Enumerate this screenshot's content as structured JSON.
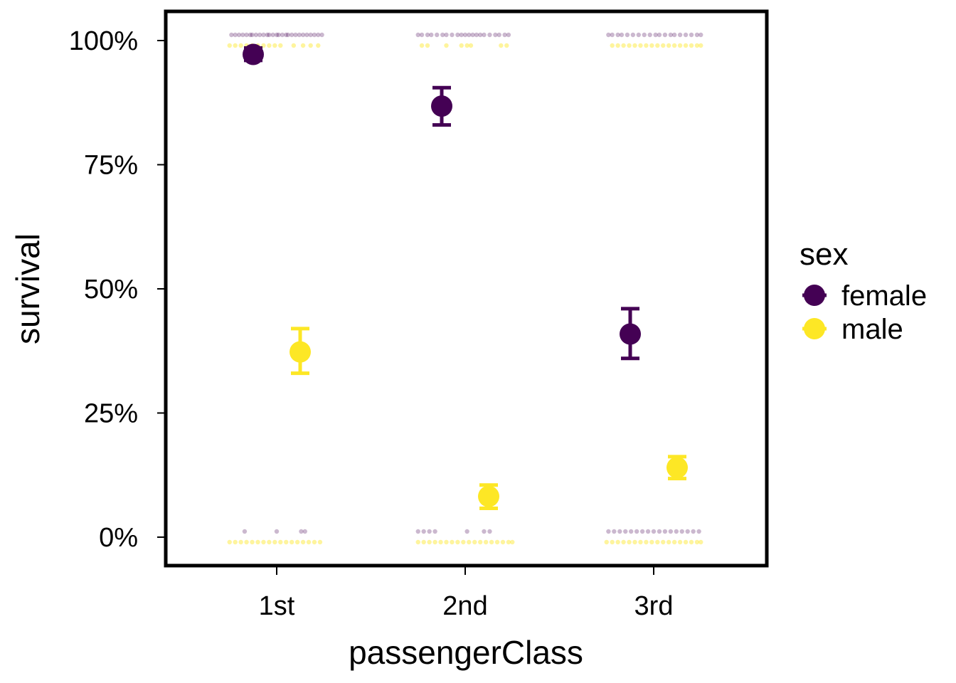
{
  "chart_data": {
    "type": "scatter",
    "title": "",
    "xlabel": "passengerClass",
    "ylabel": "survival",
    "categories": [
      "1st",
      "2nd",
      "3rd"
    ],
    "ylim": [
      -0.05,
      1.05
    ],
    "yticks": [
      0,
      0.25,
      0.5,
      0.75,
      1.0
    ],
    "ytick_labels": [
      "0%",
      "25%",
      "50%",
      "75%",
      "100%"
    ],
    "grid": false,
    "legend": {
      "title": "sex",
      "placement": "right"
    },
    "series": [
      {
        "name": "female",
        "color": "#440154",
        "survival": [
          0.972,
          0.868,
          0.409
        ],
        "ci_low": [
          0.96,
          0.83,
          0.36
        ],
        "ci_high": [
          0.985,
          0.905,
          0.46
        ]
      },
      {
        "name": "male",
        "color": "#FDE725",
        "survival": [
          0.373,
          0.082,
          0.14
        ],
        "ci_low": [
          0.33,
          0.058,
          0.118
        ],
        "ci_high": [
          0.42,
          0.105,
          0.162
        ]
      }
    ],
    "raw_observations": {
      "female": {
        "survived": [
          [
            -0.24,
            -0.22,
            -0.2,
            -0.18,
            -0.16,
            -0.14,
            -0.13,
            -0.11,
            -0.09,
            -0.07,
            -0.05,
            -0.04,
            -0.02,
            0.0,
            0.01,
            0.03,
            0.05,
            0.06,
            0.08,
            0.1,
            0.12,
            0.14,
            0.16,
            0.18,
            0.2,
            0.22,
            0.24
          ],
          [
            -0.25,
            -0.23,
            -0.2,
            -0.18,
            -0.15,
            -0.12,
            -0.1,
            -0.07,
            -0.04,
            -0.02,
            0.0,
            0.02,
            0.04,
            0.06,
            0.08,
            0.1,
            0.13,
            0.16,
            0.18,
            0.21,
            0.23
          ],
          [
            -0.24,
            -0.22,
            -0.19,
            -0.17,
            -0.14,
            -0.11,
            -0.08,
            -0.05,
            -0.02,
            0.01,
            0.03,
            0.06,
            0.09,
            0.11,
            0.14,
            0.17,
            0.2,
            0.23,
            0.25
          ]
        ],
        "died": [
          [
            -0.17,
            0.0,
            0.13,
            0.15
          ],
          [
            -0.25,
            -0.22,
            -0.19,
            -0.16,
            0.01,
            0.1,
            0.13
          ],
          [
            -0.24,
            -0.21,
            -0.18,
            -0.15,
            -0.12,
            -0.09,
            -0.06,
            -0.03,
            0.0,
            0.03,
            0.06,
            0.09,
            0.12,
            0.15,
            0.18,
            0.21,
            0.24
          ]
        ]
      },
      "male": {
        "survived": [
          [
            -0.25,
            -0.22,
            -0.19,
            -0.16,
            -0.13,
            -0.1,
            -0.07,
            -0.04,
            -0.01,
            0.02,
            0.09,
            0.14,
            0.18,
            0.22
          ],
          [
            -0.23,
            -0.2,
            -0.1,
            -0.02,
            0.01,
            0.03,
            0.19,
            0.22
          ],
          [
            -0.22,
            -0.19,
            -0.16,
            -0.13,
            -0.1,
            -0.07,
            -0.04,
            -0.01,
            0.02,
            0.05,
            0.08,
            0.11,
            0.14,
            0.17,
            0.2,
            0.23,
            0.25
          ]
        ],
        "died": [
          [
            -0.25,
            -0.22,
            -0.19,
            -0.16,
            -0.13,
            -0.1,
            -0.07,
            -0.04,
            -0.01,
            0.02,
            0.05,
            0.08,
            0.11,
            0.14,
            0.17,
            0.2,
            0.23
          ],
          [
            -0.25,
            -0.22,
            -0.19,
            -0.16,
            -0.13,
            -0.1,
            -0.07,
            -0.04,
            -0.01,
            0.02,
            0.05,
            0.08,
            0.11,
            0.14,
            0.17,
            0.2,
            0.23,
            0.25
          ],
          [
            -0.25,
            -0.22,
            -0.19,
            -0.16,
            -0.13,
            -0.1,
            -0.07,
            -0.04,
            -0.01,
            0.02,
            0.05,
            0.08,
            0.11,
            0.14,
            0.17,
            0.2,
            0.23,
            0.25
          ]
        ]
      }
    }
  }
}
